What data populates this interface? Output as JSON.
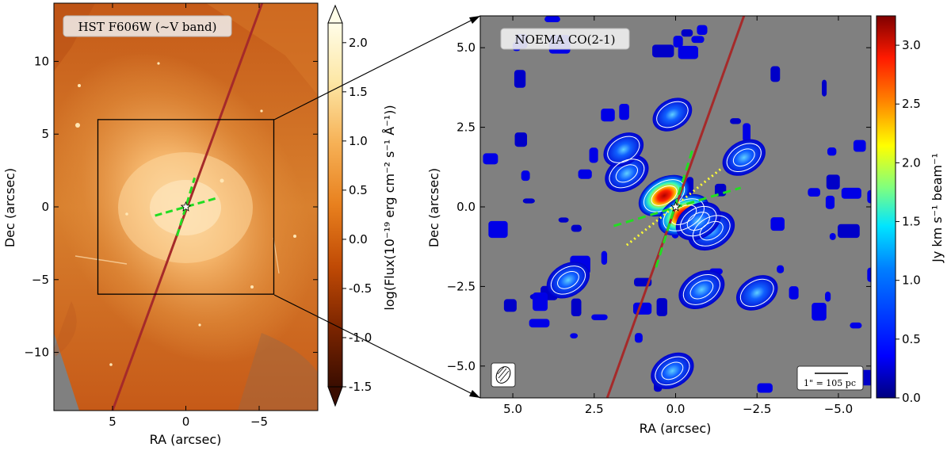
{
  "chart_data": [
    {
      "type": "heatmap",
      "panel_title": "HST F606W (~V band)",
      "xlabel": "RA (arcsec)",
      "ylabel": "Dec (arcsec)",
      "xlim": [
        9,
        -9
      ],
      "ylim": [
        -14,
        14
      ],
      "xticks": [
        5,
        0,
        -5
      ],
      "xtick_labels": [
        "5",
        "0",
        "−5"
      ],
      "yticks": [
        10,
        5,
        0,
        -5,
        -10
      ],
      "ytick_labels": [
        "10",
        "5",
        "0",
        "−5",
        "−10"
      ],
      "colorbar": {
        "label": "log(Flux(10⁻¹⁹ erg cm⁻² s⁻¹ Å⁻¹))",
        "range": [
          -1.5,
          2.2
        ],
        "ticks": [
          2.0,
          1.5,
          1.0,
          0.5,
          0.0,
          -0.5,
          -1.0,
          -1.5
        ],
        "tick_labels": [
          "2.0",
          "1.5",
          "1.0",
          "0.5",
          "0.0",
          "-0.5",
          "-1.0",
          "-1.5"
        ],
        "colormap": [
          "#3a0d00",
          "#7a2400",
          "#c04a05",
          "#e8801e",
          "#f6b156",
          "#fde7a6",
          "#fffde8"
        ],
        "extend": "both"
      },
      "zoom_box": {
        "ra": [
          6,
          -6
        ],
        "dec": [
          -6,
          6
        ]
      },
      "overlays": {
        "slit_line": {
          "color": "#a52a2a",
          "ra": [
            5,
            -5.2
          ],
          "dec": [
            -14,
            14
          ]
        },
        "dashed_cross": {
          "color": "#22dd22",
          "segments": [
            [
              [
                2.1,
                -0.6
              ],
              [
                -2.1,
                0.6
              ]
            ],
            [
              [
                0.6,
                -2
              ],
              [
                -0.6,
                2
              ]
            ]
          ]
        },
        "nucleus_marker": {
          "ra": 0,
          "dec": 0
        }
      }
    },
    {
      "type": "heatmap",
      "panel_title": "NOEMA CO(2-1)",
      "xlabel": "RA (arcsec)",
      "ylabel": "Dec (arcsec)",
      "xlim": [
        6,
        -6
      ],
      "ylim": [
        -6,
        6
      ],
      "xticks": [
        5.0,
        2.5,
        0.0,
        -2.5,
        -5.0
      ],
      "xtick_labels": [
        "5.0",
        "2.5",
        "0.0",
        "−2.5",
        "−5.0"
      ],
      "yticks": [
        5.0,
        2.5,
        0.0,
        -2.5,
        -5.0
      ],
      "ytick_labels": [
        "5.0",
        "2.5",
        "0.0",
        "−2.5",
        "−5.0"
      ],
      "colorbar": {
        "label": "Jy km s⁻¹ beam⁻¹",
        "range": [
          0,
          3.25
        ],
        "ticks": [
          3.0,
          2.5,
          2.0,
          1.5,
          1.0,
          0.5,
          0.0
        ],
        "tick_labels": [
          "3.0",
          "2.5",
          "2.0",
          "1.5",
          "1.0",
          "0.5",
          "0.0"
        ],
        "colormap": [
          "#00007f",
          "#0000ff",
          "#0080ff",
          "#00e5ff",
          "#7fff7f",
          "#ffff00",
          "#ff8000",
          "#ff1a00",
          "#7f0000"
        ]
      },
      "background_color": "#808080",
      "scalebar_text": "1\" = 105 pc",
      "emission_blobs": [
        {
          "ra": 0.35,
          "dec": 0.35,
          "peak": 3.2
        },
        {
          "ra": -0.25,
          "dec": -0.25,
          "peak": 3.1
        },
        {
          "ra": -1.1,
          "dec": -0.75,
          "peak": 1.8
        },
        {
          "ra": -0.7,
          "dec": -0.45,
          "peak": 1.6
        },
        {
          "ra": 1.5,
          "dec": 1.05,
          "peak": 1.4
        },
        {
          "ra": 1.6,
          "dec": 1.8,
          "peak": 0.9
        },
        {
          "ra": -2.1,
          "dec": 1.55,
          "peak": 1.3
        },
        {
          "ra": 3.3,
          "dec": -2.3,
          "peak": 1.3
        },
        {
          "ra": -0.8,
          "dec": -2.6,
          "peak": 1.7
        },
        {
          "ra": -2.5,
          "dec": -2.7,
          "peak": 1.1
        },
        {
          "ra": 0.1,
          "dec": -5.15,
          "peak": 1.3
        },
        {
          "ra": 0.1,
          "dec": 2.9,
          "peak": 0.8
        }
      ],
      "overlays": {
        "slit_line": {
          "color": "#a52a2a",
          "ra": [
            2.1,
            -2.1
          ],
          "dec": [
            -6,
            6
          ]
        },
        "dashed_cross": {
          "color": "#22dd22",
          "segments": [
            [
              [
                1.9,
                -0.6
              ],
              [
                -2.0,
                0.6
              ]
            ],
            [
              [
                0.6,
                -1.9
              ],
              [
                -0.55,
                1.9
              ]
            ]
          ]
        },
        "dotted_line": {
          "color": "#ffff33",
          "points": [
            [
              1.5,
              -1.2
            ],
            [
              -1.4,
              1.2
            ]
          ]
        },
        "nucleus_marker": {
          "ra": 0,
          "dec": 0
        }
      }
    }
  ]
}
